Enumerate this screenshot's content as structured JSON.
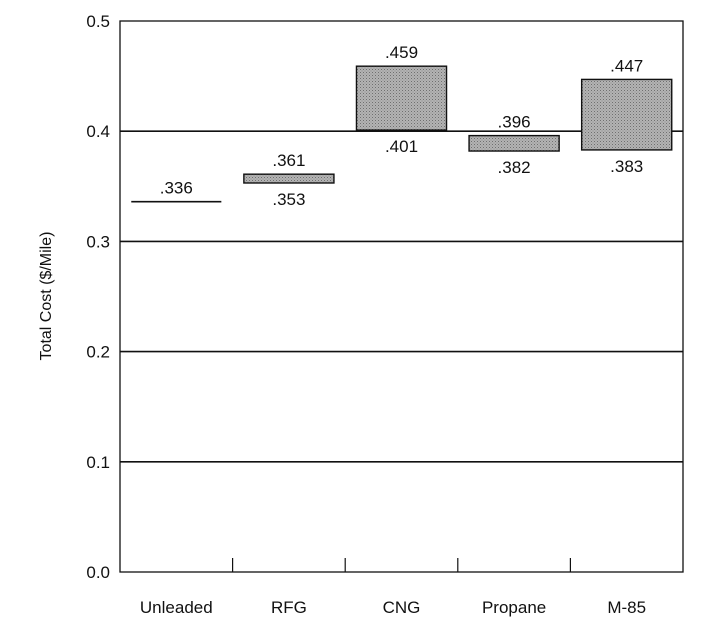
{
  "chart_data": {
    "type": "bar",
    "ylabel": "Total Cost ($/Mile)",
    "ylim": [
      0,
      0.5
    ],
    "yticks": [
      "0.0",
      "0.1",
      "0.2",
      "0.3",
      "0.4",
      "0.5"
    ],
    "categories": [
      "Unleaded",
      "RFG",
      "CNG",
      "Propane",
      "M-85"
    ],
    "series": [
      {
        "low": [
          0.336,
          0.353,
          0.401,
          0.382,
          0.383
        ],
        "high": [
          0.336,
          0.361,
          0.459,
          0.396,
          0.447
        ],
        "low_labels": [
          "",
          ".353",
          ".401",
          ".382",
          ".383"
        ],
        "high_labels": [
          ".336",
          ".361",
          ".459",
          ".396",
          ".447"
        ]
      }
    ],
    "grid": "horizontal",
    "colors": {
      "bar_fill": "#b3b3b3",
      "stroke": "#111111"
    }
  }
}
